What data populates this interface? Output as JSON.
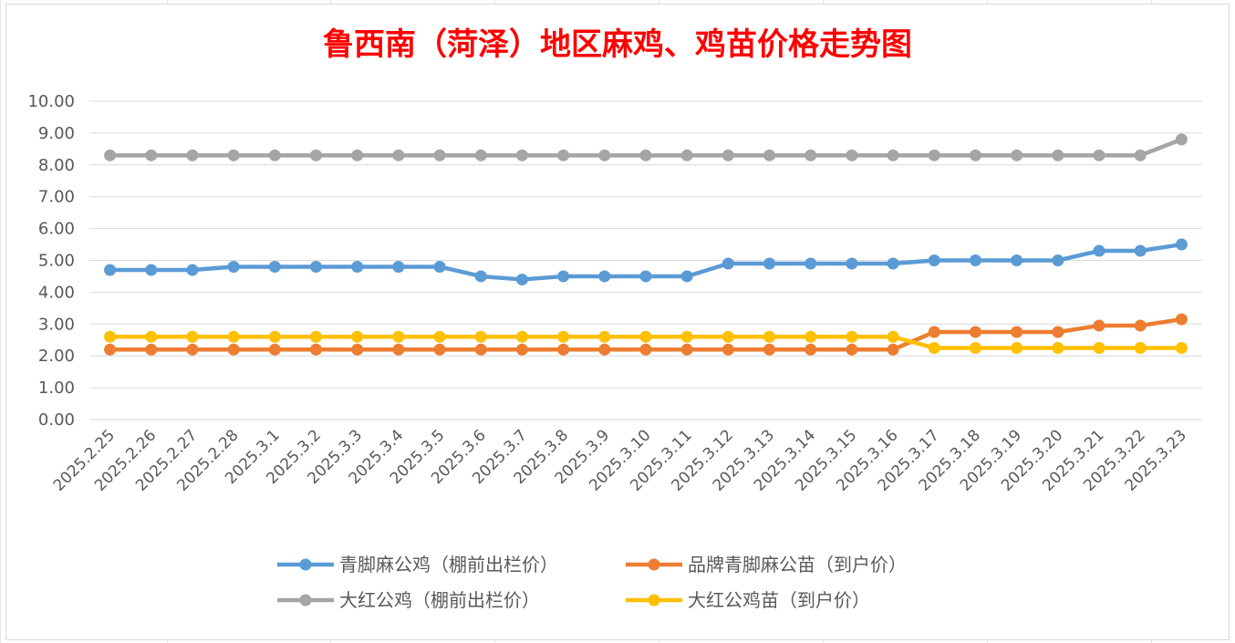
{
  "chart_data": {
    "type": "line",
    "title": "鲁西南（菏泽）地区麻鸡、鸡苗价格走势图",
    "xlabel": "",
    "ylabel": "",
    "ylim": [
      0,
      10
    ],
    "y_ticks": [
      "0.00",
      "1.00",
      "2.00",
      "3.00",
      "4.00",
      "5.00",
      "6.00",
      "7.00",
      "8.00",
      "9.00",
      "10.00"
    ],
    "grid": true,
    "legend_position": "bottom",
    "categories": [
      "2025.2.25",
      "2025.2.26",
      "2025.2.27",
      "2025.2.28",
      "2025.3.1",
      "2025.3.2",
      "2025.3.3",
      "2025.3.4",
      "2025.3.5",
      "2025.3.6",
      "2025.3.7",
      "2025.3.8",
      "2025.3.9",
      "2025.3.10",
      "2025.3.11",
      "2025.3.12",
      "2025.3.13",
      "2025.3.14",
      "2025.3.15",
      "2025.3.16",
      "2025.3.17",
      "2025.3.18",
      "2025.3.19",
      "2025.3.20",
      "2025.3.21",
      "2025.3.22",
      "2025.3.23"
    ],
    "series": [
      {
        "name": "青脚麻公鸡（棚前出栏价）",
        "color": "#5b9bd5",
        "values": [
          4.7,
          4.7,
          4.7,
          4.8,
          4.8,
          4.8,
          4.8,
          4.8,
          4.8,
          4.5,
          4.4,
          4.5,
          4.5,
          4.5,
          4.5,
          4.9,
          4.9,
          4.9,
          4.9,
          4.9,
          5.0,
          5.0,
          5.0,
          5.0,
          5.3,
          5.3,
          5.5
        ]
      },
      {
        "name": "品牌青脚麻公苗（到户价）",
        "color": "#ed7d31",
        "values": [
          2.2,
          2.2,
          2.2,
          2.2,
          2.2,
          2.2,
          2.2,
          2.2,
          2.2,
          2.2,
          2.2,
          2.2,
          2.2,
          2.2,
          2.2,
          2.2,
          2.2,
          2.2,
          2.2,
          2.2,
          2.75,
          2.75,
          2.75,
          2.75,
          2.95,
          2.95,
          3.15
        ]
      },
      {
        "name": "大红公鸡（棚前出栏价）",
        "color": "#a5a5a5",
        "values": [
          8.3,
          8.3,
          8.3,
          8.3,
          8.3,
          8.3,
          8.3,
          8.3,
          8.3,
          8.3,
          8.3,
          8.3,
          8.3,
          8.3,
          8.3,
          8.3,
          8.3,
          8.3,
          8.3,
          8.3,
          8.3,
          8.3,
          8.3,
          8.3,
          8.3,
          8.3,
          8.8
        ]
      },
      {
        "name": "大红公鸡苗（到户价）",
        "color": "#ffc000",
        "values": [
          2.6,
          2.6,
          2.6,
          2.6,
          2.6,
          2.6,
          2.6,
          2.6,
          2.6,
          2.6,
          2.6,
          2.6,
          2.6,
          2.6,
          2.6,
          2.6,
          2.6,
          2.6,
          2.6,
          2.6,
          2.25,
          2.25,
          2.25,
          2.25,
          2.25,
          2.25,
          2.25
        ]
      }
    ]
  }
}
